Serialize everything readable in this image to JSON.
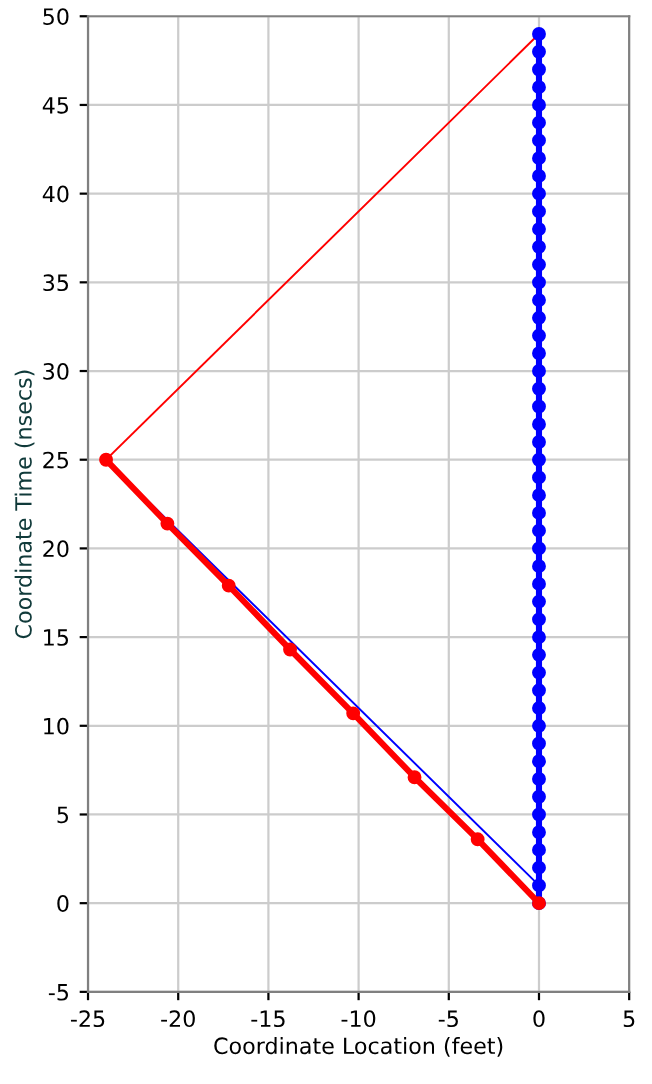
{
  "chart_data": {
    "type": "line",
    "xlabel": "Coordinate Location (feet)",
    "ylabel": "Coordinate Time (nsecs)",
    "xlim": [
      -25,
      5
    ],
    "xticks": [
      -25,
      -20,
      -15,
      -10,
      -5,
      0,
      5
    ],
    "ylim": [
      -5,
      50
    ],
    "yticks": [
      -5,
      0,
      5,
      10,
      15,
      20,
      25,
      30,
      35,
      40,
      45,
      50
    ],
    "grid": true,
    "series": [
      {
        "color": "#0000ff",
        "marker": "circle",
        "line_style": "solid",
        "x": [
          0,
          0,
          0,
          0,
          0,
          0,
          0,
          0,
          0,
          0,
          0,
          0,
          0,
          0,
          0,
          0,
          0,
          0,
          0,
          0,
          0,
          0,
          0,
          0,
          0,
          0,
          0,
          0,
          0,
          0,
          0,
          0,
          0,
          0,
          0,
          0,
          0,
          0,
          0,
          0,
          0,
          0,
          0,
          0,
          0,
          0,
          0,
          0,
          0,
          0
        ],
        "values": [
          0,
          1,
          2,
          3,
          4,
          5,
          6,
          7,
          8,
          9,
          10,
          11,
          12,
          13,
          14,
          15,
          16,
          17,
          18,
          19,
          20,
          21,
          22,
          23,
          24,
          25,
          26,
          27,
          28,
          29,
          30,
          31,
          32,
          33,
          34,
          35,
          36,
          37,
          38,
          39,
          40,
          41,
          42,
          43,
          44,
          45,
          46,
          47,
          48,
          49
        ]
      },
      {
        "color": "#ff0000",
        "marker": "circle",
        "line_style": "solid",
        "x": [
          0,
          -3.4,
          -6.9,
          -10.3,
          -13.8,
          -17.2,
          -20.6,
          -24
        ],
        "values": [
          0,
          3.6,
          7.1,
          10.7,
          14.3,
          17.9,
          21.4,
          25
        ]
      },
      {
        "color": "#0000ff",
        "marker": "none",
        "line_style": "solid",
        "x": [
          0,
          -24
        ],
        "values": [
          1,
          25
        ]
      },
      {
        "color": "#ff0000",
        "marker": "none",
        "line_style": "solid",
        "x": [
          -24,
          0
        ],
        "values": [
          25,
          49
        ]
      }
    ]
  }
}
